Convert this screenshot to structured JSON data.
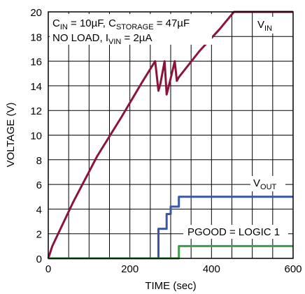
{
  "colors": {
    "vin": "#8a1538",
    "vout": "#3a57a7",
    "pgood": "#3f9a4a",
    "grid": "#000000",
    "background": "#ffffff"
  },
  "chart_data": {
    "type": "line",
    "xlabel": "TIME (sec)",
    "ylabel": "VOLTAGE (V)",
    "xlim": [
      0,
      600
    ],
    "ylim": [
      0,
      20
    ],
    "x_ticks": [
      "0",
      "200",
      "400",
      "600"
    ],
    "y_ticks": [
      "0",
      "2",
      "4",
      "6",
      "8",
      "10",
      "12",
      "14",
      "16",
      "18",
      "20"
    ],
    "grid": true,
    "annotations": {
      "line1_a": "C",
      "line1_a_sub": "IN",
      "line1_b": " = 10µF, C",
      "line1_b_sub": "STORAGE",
      "line1_c": " = 47µF",
      "line2_a": "NO LOAD, I",
      "line2_a_sub": "VIN",
      "line2_b": " = 2µA",
      "vin_label": "V",
      "vin_label_sub": "IN",
      "vout_label": "V",
      "vout_label_sub": "OUT",
      "pgood_label": "PGOOD = LOGIC 1"
    },
    "series": [
      {
        "key": "vin",
        "x": [
          0,
          10,
          60,
          120,
          180,
          230,
          262,
          270,
          275,
          285,
          290,
          300,
          310,
          315,
          320,
          370,
          420,
          455,
          470,
          600
        ],
        "y": [
          0,
          1.0,
          4.5,
          8.3,
          11.5,
          14.3,
          16.0,
          13.6,
          14.2,
          16.0,
          13.3,
          14.6,
          16.0,
          14.4,
          14.7,
          16.8,
          18.6,
          20.0,
          20.0,
          20.0
        ]
      },
      {
        "key": "vout",
        "x": [
          0,
          270,
          270,
          290,
          290,
          300,
          300,
          320,
          320,
          600
        ],
        "y": [
          0,
          0,
          2.4,
          2.4,
          3.6,
          3.6,
          4.2,
          4.2,
          5.0,
          5.0
        ]
      },
      {
        "key": "pgood",
        "x": [
          0,
          320,
          320,
          600
        ],
        "y": [
          0,
          0,
          1.0,
          1.0
        ]
      }
    ]
  }
}
